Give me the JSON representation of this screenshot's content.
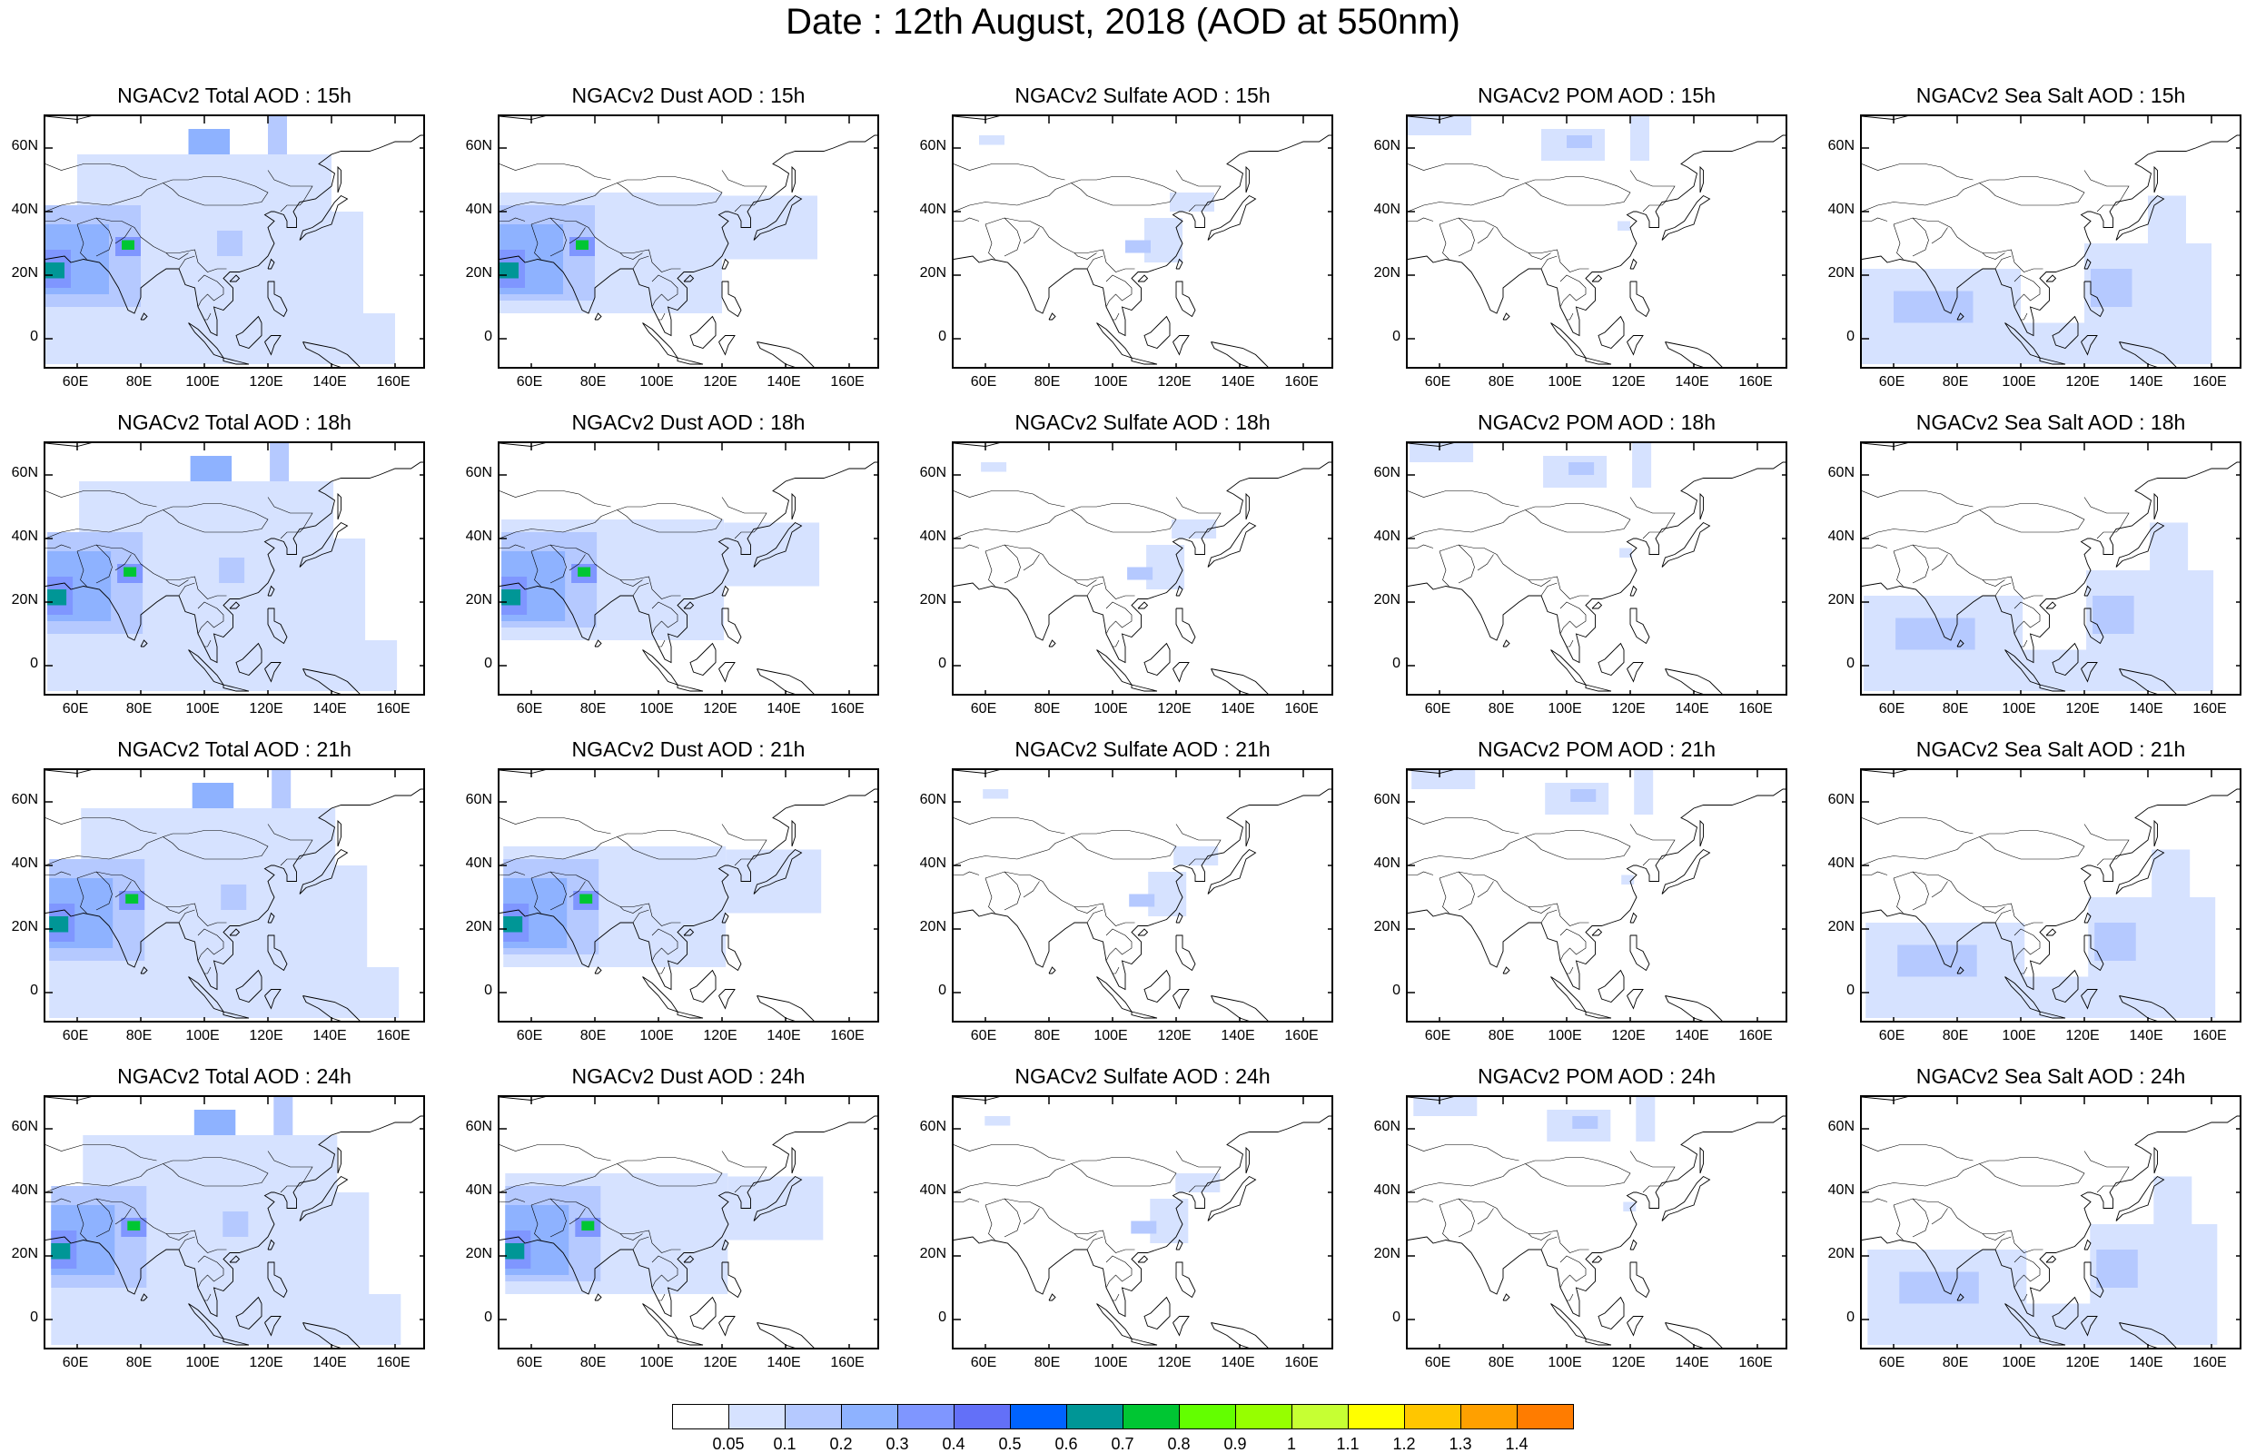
{
  "title": "Date : 12th August, 2018 (AOD at 550nm)",
  "map": {
    "lon_range": [
      50,
      170
    ],
    "lat_range": [
      -10,
      70
    ],
    "lon_ticks": [
      60,
      80,
      100,
      120,
      140,
      160
    ],
    "lat_ticks": [
      0,
      20,
      40,
      60
    ],
    "lon_tick_labels": [
      "60E",
      "80E",
      "100E",
      "120E",
      "140E",
      "160E"
    ],
    "lat_tick_labels": [
      "0",
      "20N",
      "40N",
      "60N"
    ]
  },
  "panels": [
    {
      "title": "NGACv2 Total AOD : 15h",
      "species": "total",
      "hour": 15
    },
    {
      "title": "NGACv2 Dust AOD : 15h",
      "species": "dust",
      "hour": 15
    },
    {
      "title": "NGACv2 Sulfate AOD : 15h",
      "species": "sulfate",
      "hour": 15
    },
    {
      "title": "NGACv2 POM AOD : 15h",
      "species": "pom",
      "hour": 15
    },
    {
      "title": "NGACv2 Sea Salt AOD : 15h",
      "species": "seasalt",
      "hour": 15
    },
    {
      "title": "NGACv2 Total AOD : 18h",
      "species": "total",
      "hour": 18
    },
    {
      "title": "NGACv2 Dust AOD : 18h",
      "species": "dust",
      "hour": 18
    },
    {
      "title": "NGACv2 Sulfate AOD : 18h",
      "species": "sulfate",
      "hour": 18
    },
    {
      "title": "NGACv2 POM AOD : 18h",
      "species": "pom",
      "hour": 18
    },
    {
      "title": "NGACv2 Sea Salt AOD : 18h",
      "species": "seasalt",
      "hour": 18
    },
    {
      "title": "NGACv2 Total AOD : 21h",
      "species": "total",
      "hour": 21
    },
    {
      "title": "NGACv2 Dust AOD : 21h",
      "species": "dust",
      "hour": 21
    },
    {
      "title": "NGACv2 Sulfate AOD : 21h",
      "species": "sulfate",
      "hour": 21
    },
    {
      "title": "NGACv2 POM AOD : 21h",
      "species": "pom",
      "hour": 21
    },
    {
      "title": "NGACv2 Sea Salt AOD : 21h",
      "species": "seasalt",
      "hour": 21
    },
    {
      "title": "NGACv2 Total AOD : 24h",
      "species": "total",
      "hour": 24
    },
    {
      "title": "NGACv2 Dust AOD : 24h",
      "species": "dust",
      "hour": 24
    },
    {
      "title": "NGACv2 Sulfate AOD : 24h",
      "species": "sulfate",
      "hour": 24
    },
    {
      "title": "NGACv2 POM AOD : 24h",
      "species": "pom",
      "hour": 24
    },
    {
      "title": "NGACv2 Sea Salt  AOD : 24h",
      "species": "seasalt",
      "hour": 24
    }
  ],
  "colorbar": {
    "labels": [
      "0.05",
      "0.1",
      "0.2",
      "0.3",
      "0.4",
      "0.5",
      "0.6",
      "0.7",
      "0.8",
      "0.9",
      "1",
      "1.1",
      "1.2",
      "1.3",
      "1.4"
    ],
    "colors": [
      "#ffffff",
      "#d6e2ff",
      "#b5c9ff",
      "#8eb2ff",
      "#7f96ff",
      "#6370f8",
      "#0063ff",
      "#009696",
      "#00c633",
      "#63ff00",
      "#96ff00",
      "#c6ff33",
      "#ffff00",
      "#ffc600",
      "#ffa000",
      "#ff7c00",
      "#ff1900"
    ]
  },
  "aod_regions": {
    "total": [
      {
        "lon": [
          50,
          160
        ],
        "lat": [
          -8,
          8
        ],
        "level": 1
      },
      {
        "lon": [
          50,
          150
        ],
        "lat": [
          8,
          40
        ],
        "level": 1
      },
      {
        "lon": [
          60,
          140
        ],
        "lat": [
          40,
          58
        ],
        "level": 1
      },
      {
        "lon": [
          50,
          80
        ],
        "lat": [
          10,
          42
        ],
        "level": 2
      },
      {
        "lon": [
          50,
          70
        ],
        "lat": [
          14,
          36
        ],
        "level": 3
      },
      {
        "lon": [
          50,
          58
        ],
        "lat": [
          16,
          28
        ],
        "level": 4
      },
      {
        "lon": [
          50,
          56
        ],
        "lat": [
          19,
          24
        ],
        "level": 7
      },
      {
        "lon": [
          72,
          80
        ],
        "lat": [
          26,
          32
        ],
        "level": 4
      },
      {
        "lon": [
          74,
          78
        ],
        "lat": [
          28,
          31
        ],
        "level": 8
      },
      {
        "lon": [
          95,
          108
        ],
        "lat": [
          58,
          66
        ],
        "level": 3
      },
      {
        "lon": [
          120,
          126
        ],
        "lat": [
          58,
          70
        ],
        "level": 2
      },
      {
        "lon": [
          104,
          112
        ],
        "lat": [
          26,
          34
        ],
        "level": 2
      }
    ],
    "dust": [
      {
        "lon": [
          50,
          120
        ],
        "lat": [
          8,
          46
        ],
        "level": 1
      },
      {
        "lon": [
          120,
          150
        ],
        "lat": [
          25,
          45
        ],
        "level": 1
      },
      {
        "lon": [
          50,
          80
        ],
        "lat": [
          12,
          42
        ],
        "level": 2
      },
      {
        "lon": [
          50,
          70
        ],
        "lat": [
          14,
          36
        ],
        "level": 3
      },
      {
        "lon": [
          50,
          58
        ],
        "lat": [
          16,
          28
        ],
        "level": 4
      },
      {
        "lon": [
          50,
          56
        ],
        "lat": [
          19,
          24
        ],
        "level": 7
      },
      {
        "lon": [
          72,
          80
        ],
        "lat": [
          26,
          32
        ],
        "level": 4
      },
      {
        "lon": [
          74,
          78
        ],
        "lat": [
          28,
          31
        ],
        "level": 8
      }
    ],
    "sulfate": [
      {
        "lon": [
          110,
          122
        ],
        "lat": [
          24,
          38
        ],
        "level": 1
      },
      {
        "lon": [
          118,
          132
        ],
        "lat": [
          40,
          46
        ],
        "level": 1
      },
      {
        "lon": [
          58,
          66
        ],
        "lat": [
          61,
          64
        ],
        "level": 1
      },
      {
        "lon": [
          104,
          112
        ],
        "lat": [
          27,
          31
        ],
        "level": 2
      }
    ],
    "pom": [
      {
        "lon": [
          50,
          70
        ],
        "lat": [
          64,
          70
        ],
        "level": 1
      },
      {
        "lon": [
          92,
          112
        ],
        "lat": [
          56,
          66
        ],
        "level": 1
      },
      {
        "lon": [
          100,
          108
        ],
        "lat": [
          60,
          64
        ],
        "level": 2
      },
      {
        "lon": [
          120,
          126
        ],
        "lat": [
          56,
          70
        ],
        "level": 1
      },
      {
        "lon": [
          116,
          120
        ],
        "lat": [
          34,
          37
        ],
        "level": 1
      }
    ],
    "seasalt": [
      {
        "lon": [
          50,
          160
        ],
        "lat": [
          -8,
          5
        ],
        "level": 1
      },
      {
        "lon": [
          50,
          100
        ],
        "lat": [
          5,
          22
        ],
        "level": 1
      },
      {
        "lon": [
          120,
          160
        ],
        "lat": [
          5,
          30
        ],
        "level": 1
      },
      {
        "lon": [
          140,
          152
        ],
        "lat": [
          30,
          45
        ],
        "level": 1
      },
      {
        "lon": [
          60,
          85
        ],
        "lat": [
          5,
          15
        ],
        "level": 2
      },
      {
        "lon": [
          122,
          135
        ],
        "lat": [
          10,
          22
        ],
        "level": 2
      }
    ]
  }
}
